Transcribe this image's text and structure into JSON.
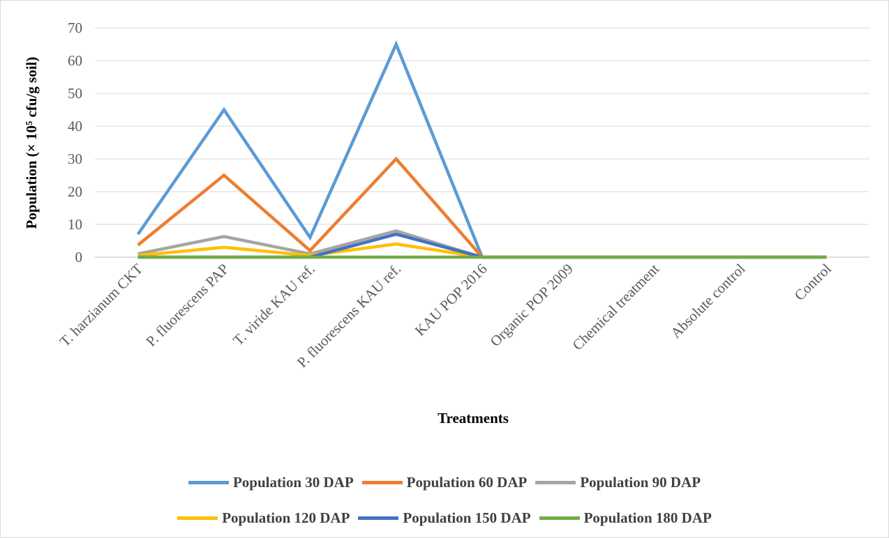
{
  "chart_data": {
    "type": "line",
    "title": "",
    "xlabel": "Treatments",
    "ylabel": "Population (× 10⁵ cfu/g soil)",
    "ylim": [
      0,
      70
    ],
    "yticks": [
      0,
      10,
      20,
      30,
      40,
      50,
      60,
      70
    ],
    "grid": true,
    "legend_position": "bottom",
    "categories": [
      "T. harzianum CKT",
      "P. fluorescens PAP",
      "T. viride KAU ref.",
      "P. fluorescens KAU ref.",
      "KAU POP 2016",
      "Organic POP 2009",
      "Chemical treatment",
      "Absolute control",
      "Control"
    ],
    "series": [
      {
        "name": "Population 30 DAP",
        "color": "#5B9BD5",
        "values": [
          7,
          45,
          6,
          65,
          0,
          0,
          0,
          0,
          0
        ]
      },
      {
        "name": "Population 60 DAP",
        "color": "#ED7D31",
        "values": [
          3.7,
          25,
          2,
          30,
          0,
          0,
          0,
          0,
          0
        ]
      },
      {
        "name": "Population 90 DAP",
        "color": "#A5A5A5",
        "values": [
          1,
          6.3,
          1,
          8,
          0,
          0,
          0,
          0,
          0
        ]
      },
      {
        "name": "Population 120 DAP",
        "color": "#FFC000",
        "values": [
          0.5,
          3,
          0.5,
          4,
          0,
          0,
          0,
          0,
          0
        ]
      },
      {
        "name": "Population 150 DAP",
        "color": "#4472C4",
        "values": [
          0,
          0,
          0,
          7,
          0,
          0,
          0,
          0,
          0
        ]
      },
      {
        "name": "Population 180 DAP",
        "color": "#70AD47",
        "values": [
          0,
          0,
          0,
          0,
          0,
          0,
          0,
          0,
          0
        ]
      }
    ]
  }
}
